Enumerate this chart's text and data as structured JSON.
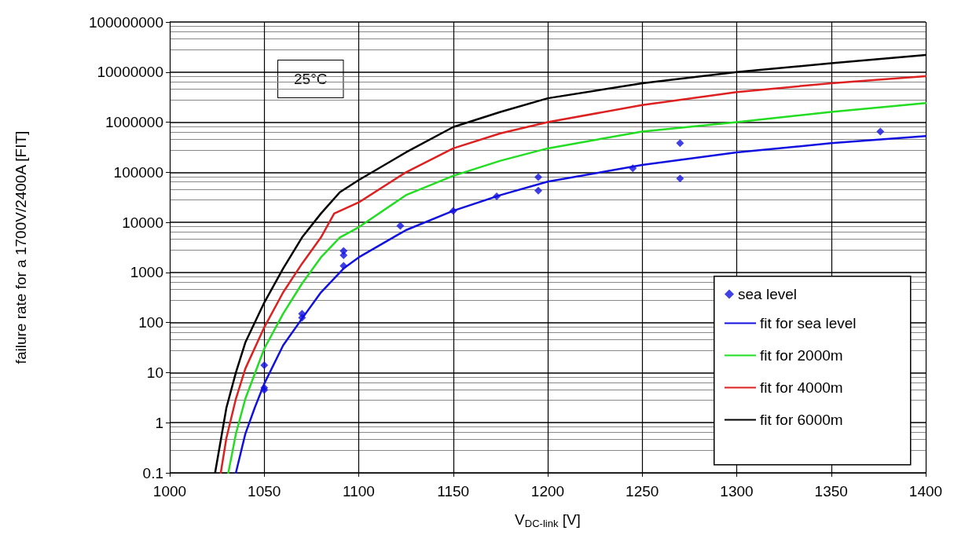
{
  "chart_data": {
    "type": "line",
    "xlabel": "V$_{DC-link}$ [V]",
    "ylabel": "failure rate for a 1700V/2400A [FIT]",
    "annotations": [
      "25°C"
    ],
    "xlim": [
      1000,
      1400
    ],
    "xticks": [
      1000,
      1050,
      1100,
      1150,
      1200,
      1250,
      1300,
      1350,
      1400
    ],
    "ylim": [
      0.1,
      100000000
    ],
    "yticks": [
      0.1,
      1,
      10,
      100,
      1000,
      10000,
      100000,
      1000000,
      10000000,
      100000000
    ],
    "log": "y",
    "grid": true,
    "legend": "bottom right",
    "series": [
      {
        "name": "sea level",
        "type": "scatter",
        "marker": "diamond",
        "color": "#1010e0",
        "x": [
          1050,
          1050,
          1050,
          1070,
          1070,
          1092,
          1092,
          1092,
          1122,
          1150,
          1173,
          1195,
          1195,
          1245,
          1270,
          1270,
          1376
        ],
        "values": [
          14,
          4.5,
          5,
          150,
          125,
          2700,
          2200,
          1350,
          8500,
          17000,
          33000,
          80000,
          43000,
          120000,
          380000,
          75000,
          650000
        ]
      },
      {
        "name": "fit for sea level",
        "marker": "none",
        "color": "#1010e0",
        "x": [
          1035,
          1040,
          1045,
          1050,
          1060,
          1070,
          1080,
          1092,
          1100,
          1125,
          1150,
          1175,
          1200,
          1250,
          1300,
          1350,
          1400
        ],
        "values": [
          0.1,
          0.6,
          2,
          6,
          35,
          120,
          400,
          1200,
          2000,
          7000,
          17000,
          35000,
          65000,
          140000,
          250000,
          380000,
          530000
        ]
      },
      {
        "name": "fit for 2000m",
        "marker": "none",
        "color": "#22dd22",
        "x": [
          1031,
          1035,
          1040,
          1050,
          1060,
          1070,
          1080,
          1090,
          1100,
          1125,
          1150,
          1175,
          1200,
          1250,
          1300,
          1350,
          1400
        ],
        "values": [
          0.1,
          0.6,
          3,
          30,
          150,
          600,
          2000,
          5000,
          8000,
          35000,
          85000,
          170000,
          300000,
          650000,
          1000000,
          1600000,
          2400000
        ]
      },
      {
        "name": "fit for 4000m",
        "marker": "none",
        "color": "#dd2020",
        "x": [
          1027,
          1030,
          1035,
          1040,
          1050,
          1060,
          1070,
          1080,
          1087,
          1100,
          1125,
          1150,
          1175,
          1200,
          1250,
          1300,
          1350,
          1400
        ],
        "values": [
          0.1,
          0.5,
          3,
          12,
          80,
          400,
          1500,
          5000,
          15000,
          25000,
          100000,
          300000,
          600000,
          1000000,
          2200000,
          4000000,
          6000000,
          8300000
        ]
      },
      {
        "name": "fit for 6000m",
        "marker": "none",
        "color": "#000000",
        "x": [
          1024,
          1030,
          1035,
          1040,
          1050,
          1060,
          1070,
          1080,
          1090,
          1100,
          1125,
          1150,
          1175,
          1200,
          1250,
          1300,
          1350,
          1400
        ],
        "values": [
          0.1,
          2,
          10,
          40,
          250,
          1200,
          5000,
          15000,
          40000,
          70000,
          250000,
          800000,
          1600000,
          3000000,
          6000000,
          10000000,
          15000000,
          22000000
        ]
      }
    ]
  }
}
